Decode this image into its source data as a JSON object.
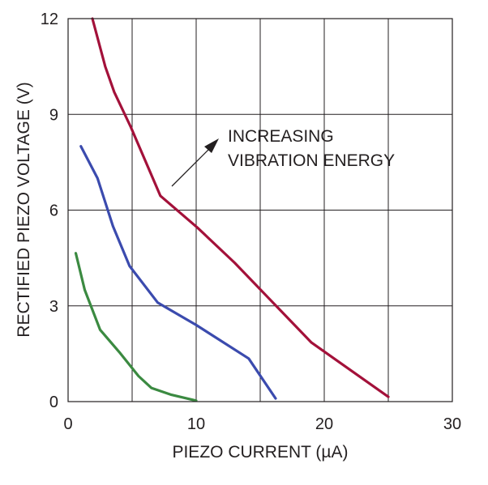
{
  "chart_data": {
    "type": "line",
    "title": "",
    "xlabel": "PIEZO CURRENT (µA)",
    "ylabel": "RECTIFIED PIEZO VOLTAGE (V)",
    "xlim": [
      0,
      30
    ],
    "ylim": [
      0,
      12
    ],
    "xticks": [
      0,
      10,
      20,
      30
    ],
    "yticks": [
      0,
      3,
      6,
      9,
      12
    ],
    "x_tick_labels": [
      "0",
      "10",
      "20",
      "30"
    ],
    "y_tick_labels": [
      "0",
      "3",
      "6",
      "9",
      "12"
    ],
    "grid": true,
    "grid_step_x": 5,
    "legend": "none",
    "annotation": {
      "lines": [
        "INCREASING",
        "VIBRATION ENERGY"
      ],
      "arrow": true
    },
    "series": [
      {
        "color": "#3b4bae",
        "points": [
          [
            1.0,
            8.0
          ],
          [
            2.3,
            7.0
          ],
          [
            3.5,
            5.5
          ],
          [
            4.8,
            4.25
          ],
          [
            7.0,
            3.1
          ],
          [
            10.0,
            2.4
          ],
          [
            14.1,
            1.35
          ],
          [
            16.2,
            0.1
          ]
        ]
      },
      {
        "color": "#a3113a",
        "points": [
          [
            1.9,
            12.0
          ],
          [
            2.9,
            10.5
          ],
          [
            3.6,
            9.7
          ],
          [
            4.9,
            8.6
          ],
          [
            7.2,
            6.45
          ],
          [
            10.1,
            5.45
          ],
          [
            13.0,
            4.35
          ],
          [
            16.0,
            3.1
          ],
          [
            19.0,
            1.85
          ],
          [
            22.0,
            1.0
          ],
          [
            25.0,
            0.15
          ]
        ]
      },
      {
        "color": "#3b8a41",
        "points": [
          [
            0.6,
            4.65
          ],
          [
            1.3,
            3.5
          ],
          [
            2.5,
            2.25
          ],
          [
            4.0,
            1.55
          ],
          [
            5.5,
            0.8
          ],
          [
            6.5,
            0.43
          ],
          [
            8.0,
            0.22
          ],
          [
            10.0,
            0.03
          ]
        ]
      }
    ]
  }
}
